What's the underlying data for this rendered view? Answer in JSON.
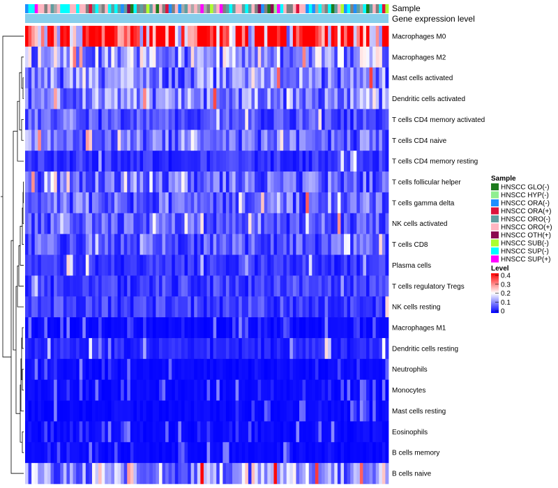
{
  "chart_data": {
    "type": "heatmap",
    "annotation_labels": [
      "Sample",
      "Gene expression level"
    ],
    "rows": [
      "Macrophages M0",
      "Macrophages M2",
      "Mast cells activated",
      "Dendritic cells activated",
      "T cells CD4 memory activated",
      "T cells CD4 naive",
      "T cells CD4 memory resting",
      "T cells follicular helper",
      "T cells gamma delta",
      "NK cells activated",
      "T cells CD8",
      "Plasma cells",
      "T cells regulatory  Tregs",
      "NK cells resting",
      "Macrophages M1",
      "Dendritic cells resting",
      "Neutrophils",
      "Monocytes",
      "Mast cells resting",
      "Eosinophils",
      "B cells memory",
      "B cells naive"
    ],
    "row_mean_level": [
      0.32,
      0.13,
      0.1,
      0.1,
      0.06,
      0.08,
      0.04,
      0.08,
      0.08,
      0.07,
      0.07,
      0.04,
      0.05,
      0.05,
      0.02,
      0.03,
      0.02,
      0.02,
      0.02,
      0.01,
      0.01,
      0.12
    ],
    "n_samples": 114,
    "legend_sample": {
      "title": "Sample",
      "entries": [
        {
          "label": "HNSCC GLO(-)",
          "color": "#1e7b1e"
        },
        {
          "label": "HNSCC HYP(-)",
          "color": "#90ee90"
        },
        {
          "label": "HNSCC ORA(-)",
          "color": "#1e90ff"
        },
        {
          "label": "HNSCC ORA(+)",
          "color": "#dc143c"
        },
        {
          "label": "HNSCC ORO(-)",
          "color": "#5f9ea0"
        },
        {
          "label": "HNSCC ORO(+)",
          "color": "#ffb6c1"
        },
        {
          "label": "HNSCC OTH(+)",
          "color": "#8b0a50"
        },
        {
          "label": "HNSCC SUB(-)",
          "color": "#adff2f"
        },
        {
          "label": "HNSCC SUP(-)",
          "color": "#00ffff"
        },
        {
          "label": "HNSCC SUP(+)",
          "color": "#ff00ff"
        }
      ]
    },
    "legend_level": {
      "title": "Level",
      "ticks": [
        "0.4",
        "0.3",
        "0.2",
        "0.1",
        "0"
      ],
      "range": [
        0,
        0.4
      ],
      "colors": [
        "#0000ff",
        "#ffffff",
        "#ff0000"
      ]
    },
    "annotation_colors": {
      "gene_expression_level": "#87ceeb",
      "sample_extra": [
        "#808080",
        "#a9a9a9",
        "#ffb6c1"
      ]
    }
  }
}
